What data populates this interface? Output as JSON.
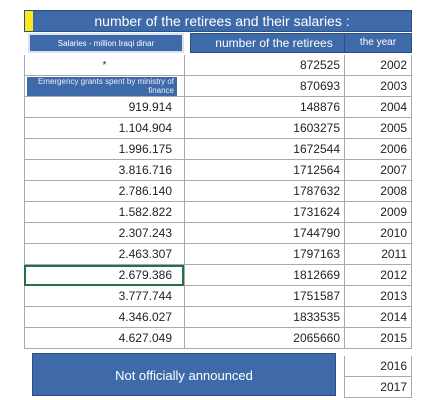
{
  "title": "number of the retirees and their salaries :",
  "headers": {
    "salaries": "Salaries - million Iraqi dinar",
    "retirees": "number of the retirees",
    "year": "the year"
  },
  "rows": [
    {
      "salary": "*",
      "retirees": "872525",
      "year": "2002"
    },
    {
      "salary": "Emergency grants spent by ministry of finance",
      "retirees": "870693",
      "year": "2003"
    },
    {
      "salary": "919.914",
      "retirees": "148876",
      "year": "2004"
    },
    {
      "salary": "1.104.904",
      "retirees": "1603275",
      "year": "2005"
    },
    {
      "salary": "1.996.175",
      "retirees": "1672544",
      "year": "2006"
    },
    {
      "salary": "3.816.716",
      "retirees": "1712564",
      "year": "2007"
    },
    {
      "salary": "2.786.140",
      "retirees": "1787632",
      "year": "2008"
    },
    {
      "salary": "1.582.822",
      "retirees": "1731624",
      "year": "2009"
    },
    {
      "salary": "2.307.243",
      "retirees": "1744790",
      "year": "2010"
    },
    {
      "salary": "2.463.307",
      "retirees": "1797163",
      "year": "2011"
    },
    {
      "salary": "2.679.386",
      "retirees": "1812669",
      "year": "2012"
    },
    {
      "salary": "3.777.744",
      "retirees": "1751587",
      "year": "2013"
    },
    {
      "salary": "4.346.027",
      "retirees": "1833535",
      "year": "2014"
    },
    {
      "salary": "4.627.049",
      "retirees": "2065660",
      "year": "2015"
    },
    {
      "salary": "",
      "retirees": "",
      "year": "2016"
    },
    {
      "salary": "",
      "retirees": "",
      "year": "2017"
    }
  ],
  "not_announced": "Not officially announced",
  "colors": {
    "header_blue": "#3f6aaa",
    "marker_yellow": "#ffe81a",
    "selection_green": "#217346"
  }
}
